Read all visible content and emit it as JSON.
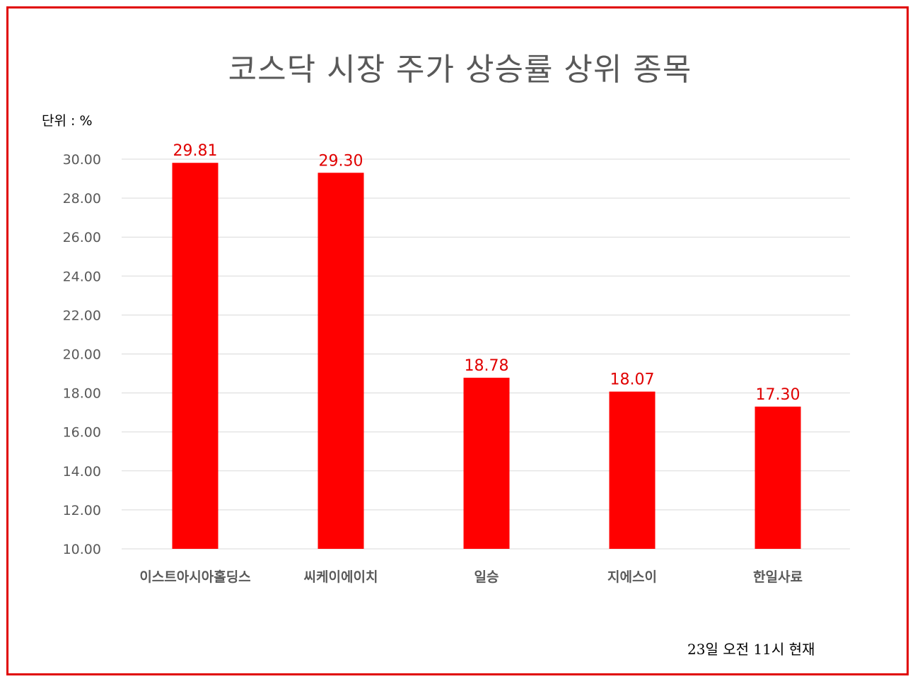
{
  "title": "코스닥 시장 주가 상승률 상위 종목",
  "unit_label": "단위 : %",
  "footnote": "23일  오전 11시 현재",
  "colors": {
    "frame": "#e00000",
    "bar": "#ff0000",
    "data_label": "#e00000",
    "axis_text": "#595959",
    "grid": "#d9d9d9"
  },
  "chart_data": {
    "type": "bar",
    "title": "코스닥 시장 주가 상승률 상위 종목",
    "ylabel": "단위 : %",
    "categories": [
      "이스트아시아홀딩스",
      "씨케이에이치",
      "일승",
      "지에스이",
      "한일사료"
    ],
    "values": [
      29.81,
      29.3,
      18.78,
      18.07,
      17.3
    ],
    "data_labels": [
      "29.81",
      "29.30",
      "18.78",
      "18.07",
      "17.30"
    ],
    "ylim": [
      10,
      30
    ],
    "yticks": [
      10,
      12,
      14,
      16,
      18,
      20,
      22,
      24,
      26,
      28,
      30
    ],
    "ytick_labels": [
      "10.00",
      "12.00",
      "14.00",
      "16.00",
      "18.00",
      "20.00",
      "22.00",
      "24.00",
      "26.00",
      "28.00",
      "30.00"
    ],
    "grid": true,
    "legend": "none"
  }
}
